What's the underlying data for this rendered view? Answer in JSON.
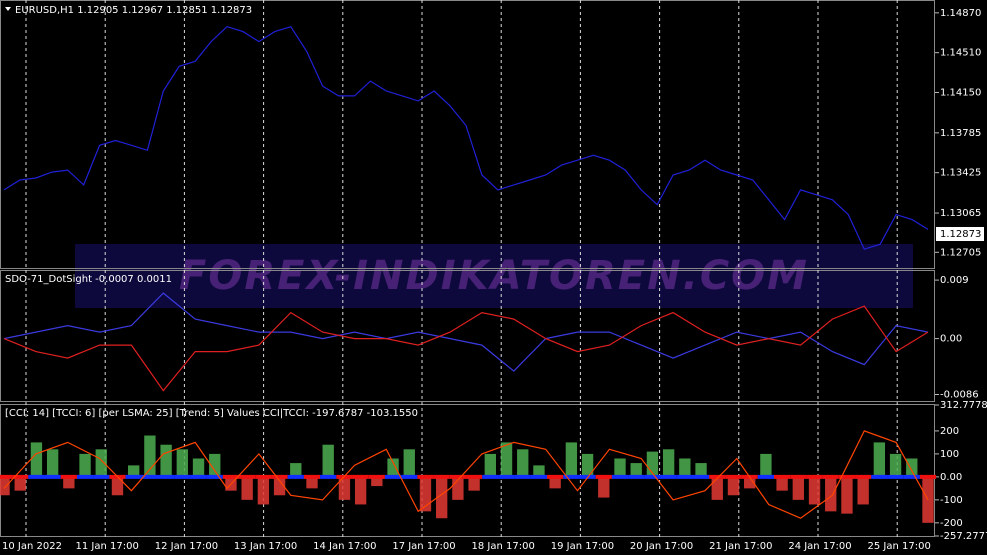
{
  "symbol_header": "EURUSD,H1  1.12905 1.12967 1.12851 1.12873",
  "current_price": "1.12873",
  "watermark": "FOREX-INDIKATOREN.COM",
  "x_labels": [
    "10 Jan 2022",
    "11 Jan 17:00",
    "12 Jan 17:00",
    "13 Jan 17:00",
    "14 Jan 17:00",
    "17 Jan 17:00",
    "18 Jan 17:00",
    "19 Jan 17:00",
    "20 Jan 17:00",
    "21 Jan 17:00",
    "24 Jan 17:00",
    "25 Jan 17:00"
  ],
  "chart_data": [
    {
      "type": "line",
      "ylim": [
        1.12572,
        1.14968
      ],
      "yticks": [
        1.12705,
        {
          "value": 1.1306,
          "label": "1.13065"
        },
        1.13425,
        1.13785,
        {
          "value": 1.1415,
          "label": "1.14150"
        },
        {
          "value": 1.1451,
          "label": "1.14510"
        },
        {
          "value": 1.1487,
          "label": "1.14870"
        }
      ],
      "series": [
        {
          "color": "#2020d8",
          "values": [
            1.13269,
            1.13359,
            1.13377,
            1.1343,
            1.13448,
            1.13314,
            1.13672,
            1.13716,
            1.13672,
            1.13627,
            1.14163,
            1.14387,
            1.14432,
            1.1461,
            1.14745,
            1.147,
            1.1461,
            1.147,
            1.14745,
            1.14521,
            1.14208,
            1.14119,
            1.14119,
            1.14253,
            1.14163,
            1.14119,
            1.14074,
            1.14163,
            1.14029,
            1.13851,
            1.13404,
            1.13269,
            1.13314,
            1.13359,
            1.13404,
            1.13493,
            1.13538,
            1.13582,
            1.13538,
            1.13448,
            1.13269,
            1.13135,
            1.13404,
            1.13448,
            1.13538,
            1.13448,
            1.13404,
            1.13359,
            1.1318,
            1.13001,
            1.13269,
            1.13225,
            1.1318,
            1.13046,
            1.12733,
            1.12778,
            1.13046,
            1.13001,
            1.12912
          ]
        }
      ]
    },
    {
      "type": "line",
      "title": "SDO-71_DotSight -0.0007 0.0011",
      "ylim": [
        -0.0096,
        0.0104
      ],
      "yticks": [
        -0.0086,
        {
          "value": 0,
          "label": "0.00"
        },
        0.009
      ],
      "series": [
        {
          "color": "#3a3ae0",
          "values": [
            0.0,
            0.001,
            0.002,
            0.001,
            0.002,
            0.007,
            0.003,
            0.002,
            0.001,
            0.001,
            0.0,
            0.001,
            0.0,
            0.001,
            0.0,
            -0.001,
            -0.005,
            0.0,
            0.001,
            0.001,
            -0.001,
            -0.003,
            -0.001,
            0.001,
            0.0,
            0.001,
            -0.002,
            -0.004,
            0.002,
            0.001
          ]
        },
        {
          "color": "#e02020",
          "values": [
            0.0,
            -0.002,
            -0.003,
            -0.001,
            -0.001,
            -0.008,
            -0.002,
            -0.002,
            -0.001,
            0.004,
            0.001,
            0.0,
            0.0,
            -0.001,
            0.001,
            0.004,
            0.003,
            0.0,
            -0.002,
            -0.001,
            0.002,
            0.004,
            0.001,
            -0.001,
            0.0,
            -0.001,
            0.003,
            0.005,
            -0.002,
            0.001
          ]
        }
      ]
    },
    {
      "type": "bar",
      "title": "[CCI: 14] [TCCI: 6] [per LSMA: 25] [Trend: 5] Values CCI|TCCI: -197.6787 -103.1550",
      "ylim": [
        -257.2777,
        312.7778
      ],
      "yticks": [
        -257.2777,
        -200,
        -100,
        {
          "value": 0,
          "label": "0.00"
        },
        100,
        200,
        312.7778
      ],
      "series": [
        {
          "color": "#4caf50",
          "negative_color": "#e53935",
          "values": [
            -80,
            -60,
            150,
            120,
            -50,
            100,
            120,
            -80,
            50,
            180,
            140,
            120,
            80,
            100,
            -60,
            -100,
            -120,
            -80,
            60,
            -50,
            140,
            -100,
            -120,
            -40,
            80,
            120,
            -150,
            -180,
            -100,
            -60,
            100,
            150,
            120,
            50,
            -50,
            150,
            100,
            -90,
            80,
            60,
            110,
            120,
            80,
            60,
            -100,
            -80,
            -50,
            100,
            -60,
            -100,
            -120,
            -150,
            -160,
            -120,
            150,
            100,
            80,
            -200
          ]
        },
        {
          "type": "line",
          "color": "#ff4500",
          "values": [
            -50,
            100,
            150,
            80,
            -60,
            100,
            150,
            -50,
            100,
            -80,
            -100,
            50,
            120,
            -150,
            -50,
            100,
            150,
            120,
            -60,
            120,
            80,
            -100,
            -60,
            80,
            -120,
            -180,
            -80,
            200,
            150,
            -100
          ]
        }
      ]
    }
  ]
}
